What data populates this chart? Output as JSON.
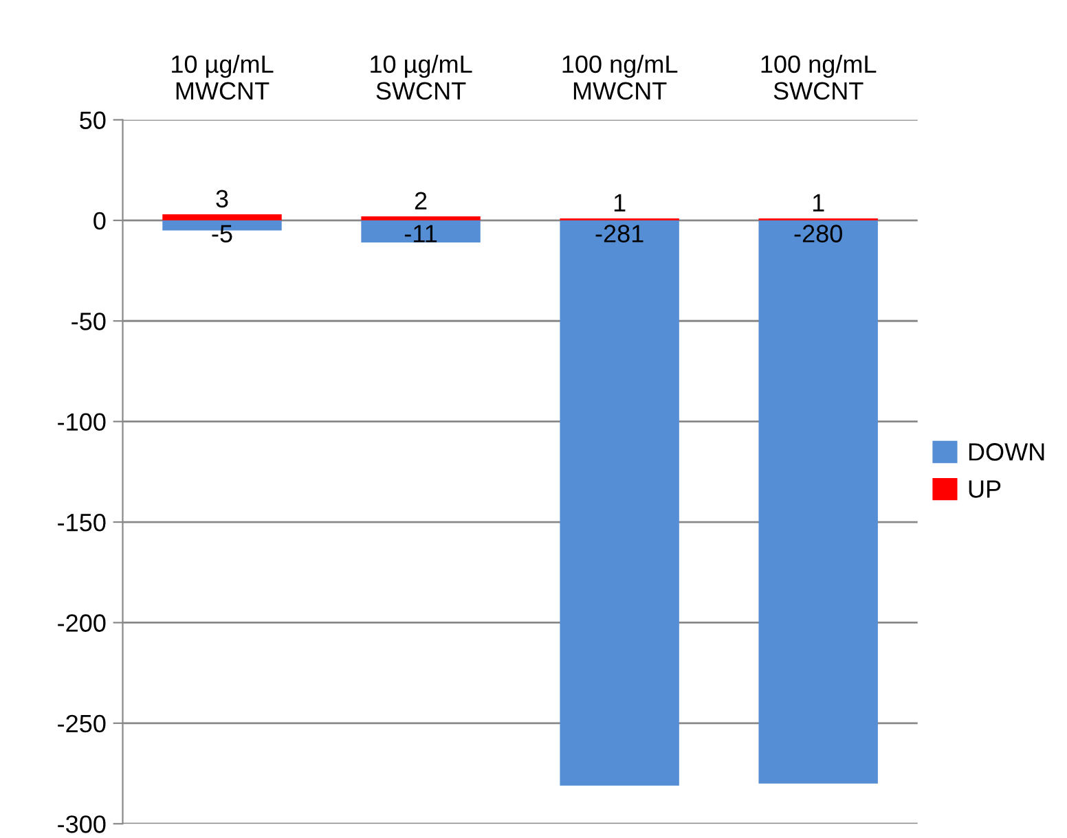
{
  "chart_data": {
    "type": "bar",
    "stacked": true,
    "categories": [
      "10 µg/mL\nMWCNT",
      "10 µg/mL\nSWCNT",
      "100 ng/mL\nMWCNT",
      "100 ng/mL\nSWCNT"
    ],
    "series": [
      {
        "name": "DOWN",
        "color": "#558ed5",
        "values": [
          -5,
          -11,
          -281,
          -280
        ]
      },
      {
        "name": "UP",
        "color": "#ff0000",
        "values": [
          3,
          2,
          1,
          1
        ]
      }
    ],
    "ylim": [
      -300,
      50
    ],
    "yticks": [
      -300,
      -250,
      -200,
      -150,
      -100,
      -50,
      0,
      50
    ],
    "grid": "y",
    "legend": "right",
    "data_labels": true
  }
}
